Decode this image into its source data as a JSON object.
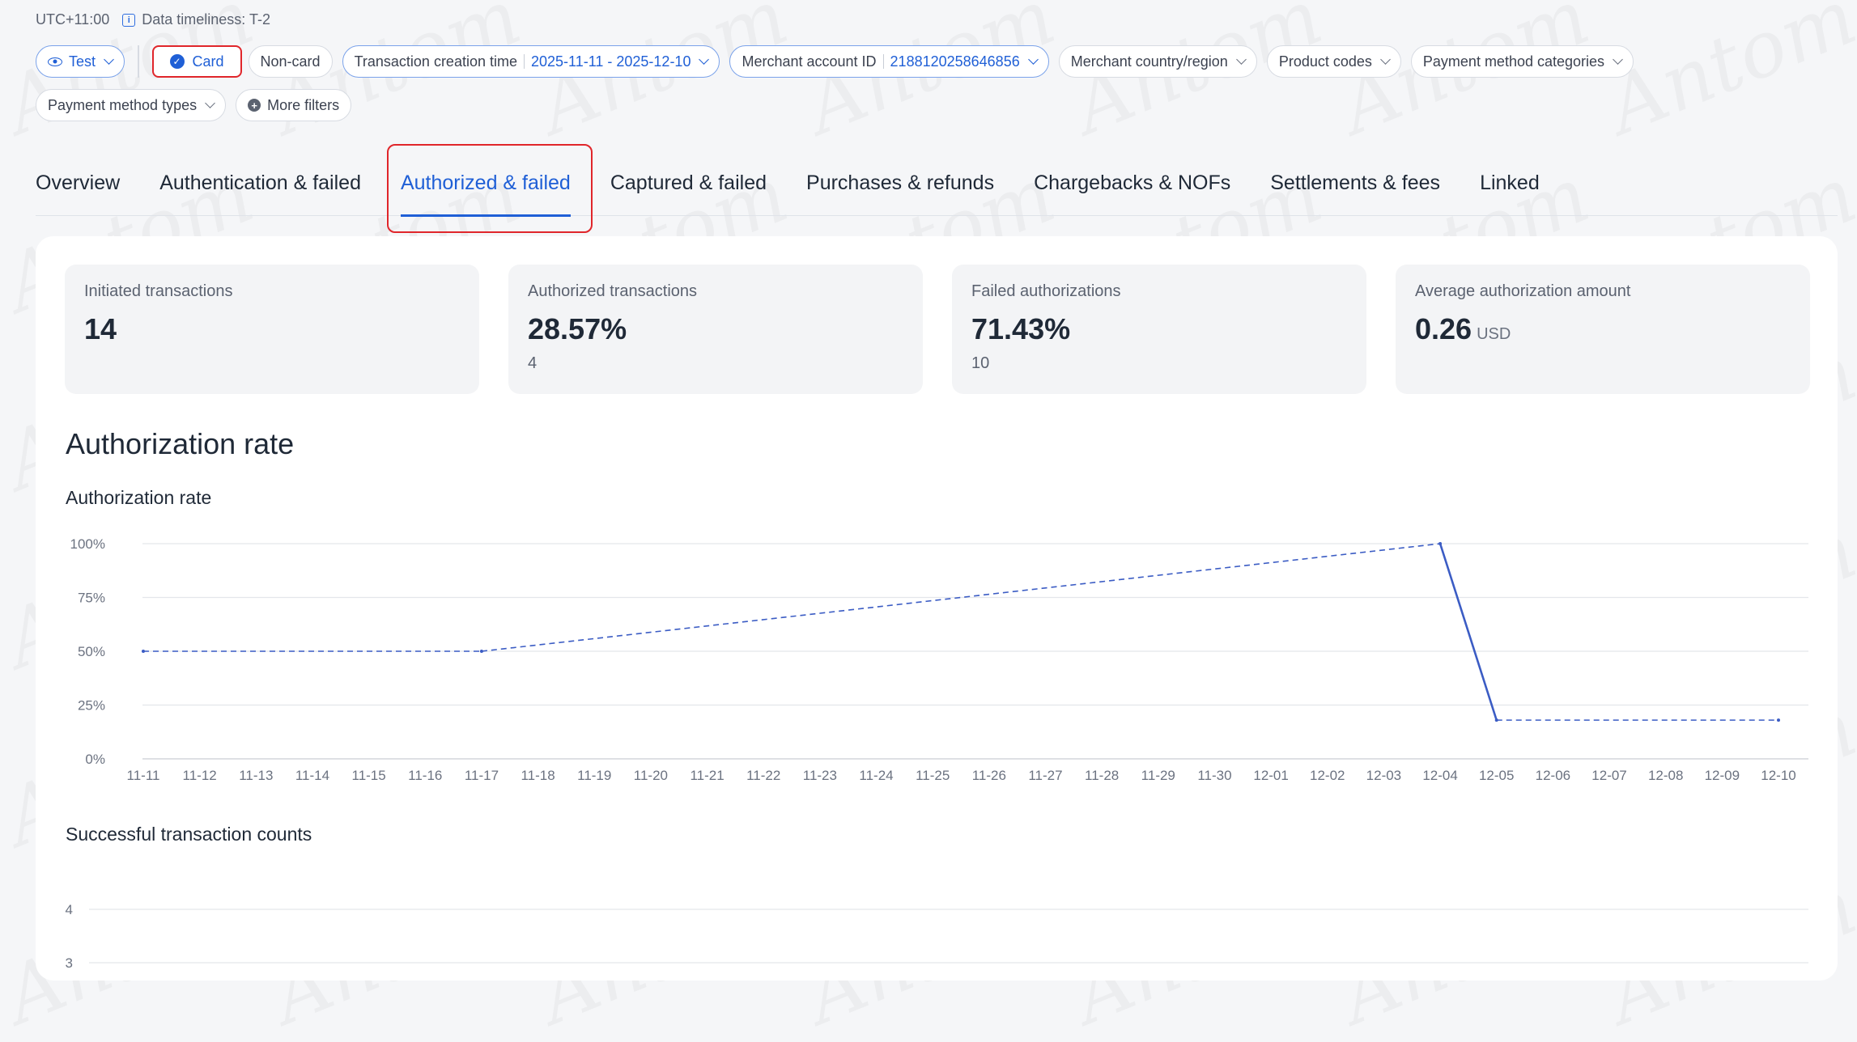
{
  "topbar": {
    "timezone": "UTC+11:00",
    "timeliness": "Data timeliness: T-2"
  },
  "filters": {
    "env": "Test",
    "card": "Card",
    "noncard": "Non-card",
    "txn_time_label": "Transaction creation time",
    "txn_time_value": "2025-11-11 - 2025-12-10",
    "merchant_label": "Merchant account ID",
    "merchant_value": "2188120258646856",
    "country": "Merchant country/region",
    "product": "Product codes",
    "pm_categories": "Payment method categories",
    "pm_types": "Payment method types",
    "more": "More filters"
  },
  "tabs": [
    {
      "label": "Overview"
    },
    {
      "label": "Authentication & failed"
    },
    {
      "label": "Authorized & failed"
    },
    {
      "label": "Captured & failed"
    },
    {
      "label": "Purchases & refunds"
    },
    {
      "label": "Chargebacks & NOFs"
    },
    {
      "label": "Settlements & fees"
    },
    {
      "label": "Linked"
    }
  ],
  "active_tab": "Authorized & failed",
  "kpis": [
    {
      "title": "Initiated transactions",
      "value": "14",
      "sub": ""
    },
    {
      "title": "Authorized transactions",
      "value": "28.57%",
      "sub": "4"
    },
    {
      "title": "Failed authorizations",
      "value": "71.43%",
      "sub": "10"
    },
    {
      "title": "Average authorization amount",
      "value": "0.26",
      "unit": "USD",
      "sub": ""
    }
  ],
  "section_title": "Authorization rate",
  "chart1_title": "Authorization rate",
  "chart2_title": "Successful transaction counts",
  "watermark": "Antom",
  "colors": {
    "accent": "#1f5fd6",
    "highlight": "#e0262b",
    "line": "#3b5cc4"
  },
  "chart_data": [
    {
      "type": "line",
      "title": "Authorization rate",
      "x": [
        "11-11",
        "11-12",
        "11-13",
        "11-14",
        "11-15",
        "11-16",
        "11-17",
        "11-18",
        "11-19",
        "11-20",
        "11-21",
        "11-22",
        "11-23",
        "11-24",
        "11-25",
        "11-26",
        "11-27",
        "11-28",
        "11-29",
        "11-30",
        "12-01",
        "12-02",
        "12-03",
        "12-04",
        "12-05",
        "12-06",
        "12-07",
        "12-08",
        "12-09",
        "12-10"
      ],
      "yticks": [
        "0%",
        "25%",
        "50%",
        "75%",
        "100%"
      ],
      "ylim": [
        0,
        100
      ],
      "points": [
        {
          "x": "11-11",
          "y": 50
        },
        {
          "x": "11-17",
          "y": 50
        },
        {
          "x": "12-04",
          "y": 100
        },
        {
          "x": "12-05",
          "y": 18
        },
        {
          "x": "12-10",
          "y": 18
        }
      ],
      "segments_dashed": [
        true,
        true,
        false,
        true
      ]
    },
    {
      "type": "bar",
      "title": "Successful transaction counts",
      "yticks": [
        "3",
        "4"
      ],
      "partial": true
    }
  ]
}
